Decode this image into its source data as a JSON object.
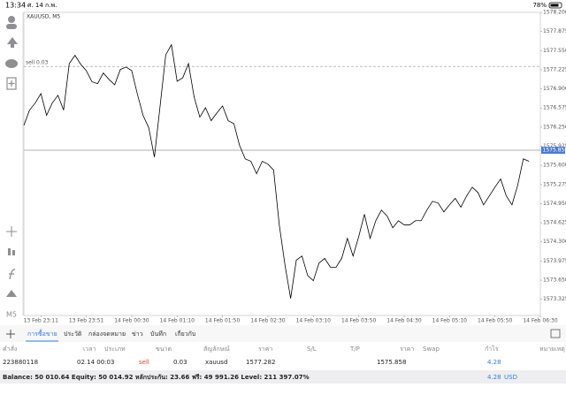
{
  "status_bar": {
    "time": "13:34",
    "date": "ศ. 14 ก.พ.",
    "battery": "78%"
  },
  "toolbar": {
    "timeframe": "M5"
  },
  "chart_data": {
    "type": "line",
    "title": "XAUUSD, M5",
    "categories": [
      null,
      null,
      null,
      "13 Feb 23:11",
      null,
      null,
      null,
      null,
      null,
      null,
      null,
      "13 Feb 23:51",
      null,
      null,
      null,
      null,
      null,
      null,
      null,
      "14 Feb 00:30",
      null,
      null,
      null,
      null,
      null,
      null,
      null,
      "14 Feb 01:10",
      null,
      null,
      null,
      null,
      null,
      null,
      null,
      "14 Feb 01:50",
      null,
      null,
      null,
      null,
      null,
      null,
      null,
      "14 Feb 02:30",
      null,
      null,
      null,
      null,
      null,
      null,
      null,
      "14 Feb 03:10",
      null,
      null,
      null,
      null,
      null,
      null,
      null,
      "14 Feb 03:50",
      null,
      null,
      null,
      null,
      null,
      null,
      null,
      "14 Feb 04:30",
      null,
      null,
      null,
      null,
      null,
      null,
      null,
      "14 Feb 05:10",
      null,
      null,
      null,
      null,
      null,
      null,
      null,
      "14 Feb 05:50",
      null,
      null,
      null,
      null,
      null,
      null,
      null,
      "14 Feb 06:30"
    ],
    "values": [
      1576.28,
      1576.54,
      1576.66,
      1576.82,
      1576.45,
      1576.66,
      1576.79,
      1576.54,
      1577.33,
      1577.47,
      1577.32,
      1577.21,
      1577.02,
      1576.99,
      1577.17,
      1577.06,
      1576.97,
      1577.23,
      1577.27,
      1577.21,
      1576.81,
      1576.45,
      1576.24,
      1575.74,
      1576.61,
      1577.48,
      1577.65,
      1577.03,
      1577.09,
      1577.33,
      1576.76,
      1576.42,
      1576.58,
      1576.36,
      1576.49,
      1576.61,
      1576.36,
      1576.31,
      1575.94,
      1575.71,
      1575.67,
      1575.46,
      1575.67,
      1575.62,
      1575.52,
      1574.59,
      1573.91,
      1573.34,
      1573.99,
      1574.06,
      1573.73,
      1573.64,
      1573.94,
      1574.02,
      1573.87,
      1573.87,
      1574.02,
      1574.36,
      1574.06,
      1574.39,
      1574.77,
      1574.36,
      1574.66,
      1574.84,
      1574.74,
      1574.54,
      1574.66,
      1574.59,
      1574.59,
      1574.66,
      1574.66,
      1574.84,
      1574.99,
      1574.96,
      1574.81,
      1574.93,
      1575.04,
      1574.89,
      1575.08,
      1575.23,
      1575.14,
      1574.93,
      1575.08,
      1575.23,
      1575.37,
      1575.08,
      1574.93,
      1575.26,
      1575.71,
      1575.67,
      null,
      null
    ],
    "color": "#000000",
    "ylim": [
      1573.05,
      1578.2
    ],
    "yticks": [
      {
        "value": 1578.2,
        "label": "1578.200"
      },
      1577.875,
      {
        "value": 1577.55,
        "label": "1577.550"
      },
      1577.225,
      {
        "value": 1576.9,
        "label": "1576.900"
      },
      1576.575,
      {
        "value": 1576.25,
        "label": "1576.250"
      },
      1575.925,
      {
        "value": 1575.6,
        "label": "1575.600"
      },
      1575.275,
      {
        "value": 1574.95,
        "label": "1574.950"
      },
      1574.625,
      {
        "value": 1574.3,
        "label": "1574.300"
      },
      1573.975,
      {
        "value": 1573.65,
        "label": "1573.650"
      },
      1573.325
    ],
    "grid": false,
    "current_price": 1575.858,
    "order_line": {
      "label": "sell 0.03",
      "value": 1577.282
    }
  },
  "tabs": [
    "การซื้อขาย",
    "ประวัติ",
    "กล่องจดหมาย",
    "ข่าว",
    "บันทึก",
    "เกี่ยวกับ"
  ],
  "table": {
    "headers": [
      "คำสั่ง",
      "เวลา",
      "ประเภท",
      "ขนาด",
      "สัญลักษณ์",
      "ราคา",
      "S/L",
      "T/P",
      "ราคา",
      "Swap",
      "กำไร",
      "หมายเหตุ"
    ],
    "rows": [
      [
        "223880118",
        "02.14 00:03",
        "sell",
        "0.03",
        "xauusd",
        "1577.282",
        null,
        null,
        "1575.858",
        null,
        "4.28",
        null
      ]
    ]
  },
  "summary": {
    "text": "Balance: 50 010.64 Equity: 50 014.92 หลักประกัน: 23.66 ฟรี: 49 991.26 Level: 211 397.07%",
    "profit": "4.28",
    "currency": "USD"
  }
}
